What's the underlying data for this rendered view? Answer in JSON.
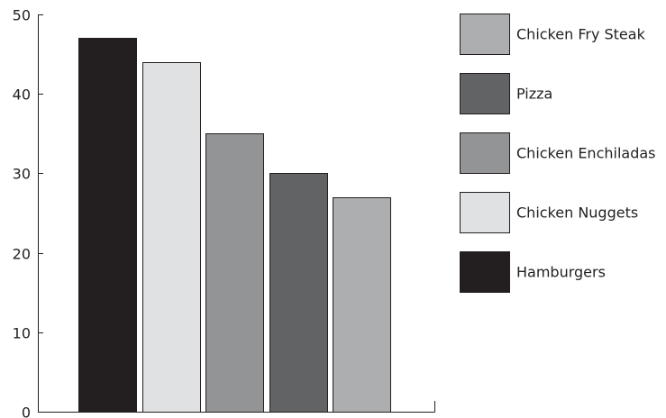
{
  "chart_data": {
    "type": "bar",
    "categories": [
      "Hamburgers",
      "Chicken Nuggets",
      "Chicken Enchiladas",
      "Pizza",
      "Chicken Fry Steak"
    ],
    "values": [
      47,
      44,
      35,
      30,
      27
    ],
    "ylim": [
      0,
      50
    ],
    "yticks": [
      0,
      10,
      20,
      30,
      40,
      50
    ],
    "grid": false,
    "legend_position": "right",
    "legend_order": [
      "Chicken Fry Steak",
      "Pizza",
      "Chicken Enchiladas",
      "Chicken Nuggets",
      "Hamburgers"
    ],
    "colors": {
      "Hamburgers": "#231f20",
      "Chicken Nuggets": "#e0e1e2",
      "Chicken Enchiladas": "#929496",
      "Pizza": "#626364",
      "Chicken Fry Steak": "#adaeb0"
    },
    "axis_color": "#231f20"
  }
}
